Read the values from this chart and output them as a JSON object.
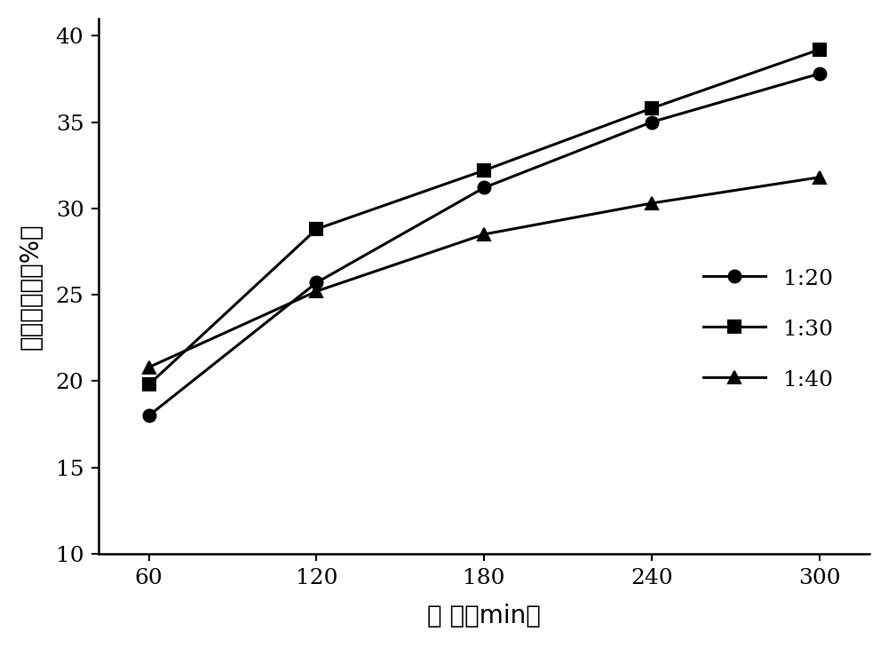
{
  "x": [
    60,
    120,
    180,
    240,
    300
  ],
  "series": [
    {
      "label": "1:20",
      "values": [
        18.0,
        25.7,
        31.2,
        35.0,
        37.8
      ],
      "marker": "o",
      "color": "#000000"
    },
    {
      "label": "1:30",
      "values": [
        19.8,
        28.8,
        32.2,
        35.8,
        39.2
      ],
      "marker": "s",
      "color": "#000000"
    },
    {
      "label": "1:40",
      "values": [
        20.8,
        25.2,
        28.5,
        30.3,
        31.8
      ],
      "marker": "^",
      "color": "#000000"
    }
  ],
  "xlabel": "时 间（min）",
  "ylabel": "多糖提取率（%）",
  "xlim": [
    42,
    318
  ],
  "ylim": [
    10,
    41
  ],
  "xticks": [
    60,
    120,
    180,
    240,
    300
  ],
  "yticks": [
    10,
    15,
    20,
    25,
    30,
    35,
    40
  ],
  "linewidth": 2.2,
  "markersize": 10,
  "font_size_tick": 18,
  "font_size_label": 20,
  "font_size_legend": 18,
  "background_color": "#ffffff"
}
